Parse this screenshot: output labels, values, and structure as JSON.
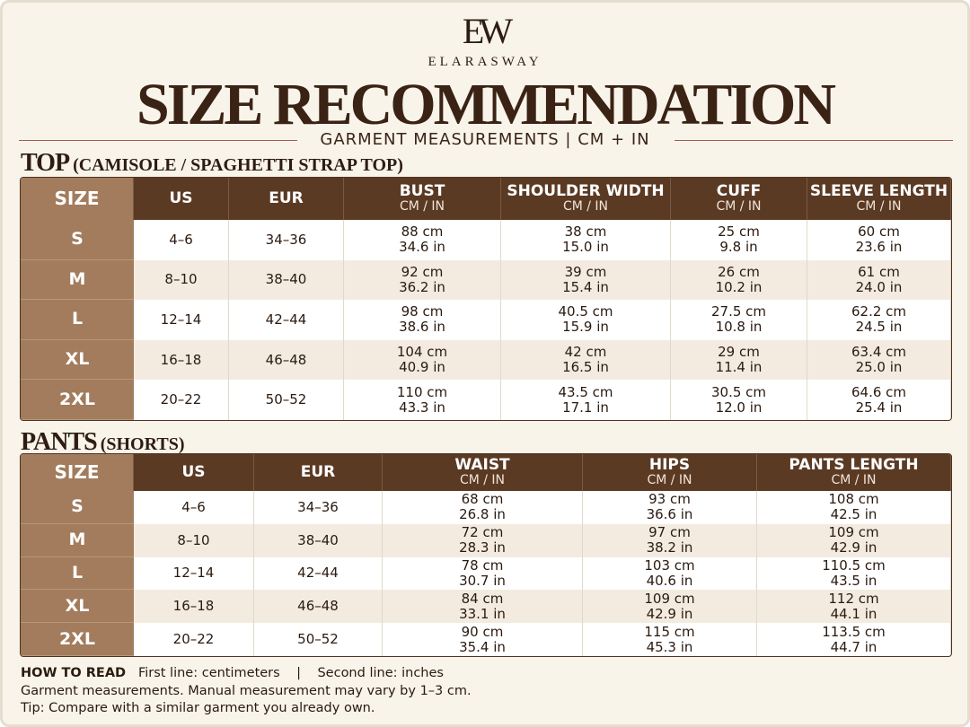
{
  "brand": {
    "logo": "EW",
    "name": "ELARASWAY"
  },
  "title": "SIZE RECOMMENDATION",
  "subtitle": "GARMENT MEASUREMENTS | CM + IN",
  "sections": [
    {
      "heading": "TOP",
      "subheading": "(CAMISOLE / SPAGHETTI STRAP TOP)",
      "columns": [
        {
          "name": "SIZE"
        },
        {
          "name": "US"
        },
        {
          "name": "EUR"
        },
        {
          "name": "BUST",
          "unit": "CM / IN"
        },
        {
          "name": "SHOULDER WIDTH",
          "unit": "CM / IN"
        },
        {
          "name": "CUFF",
          "unit": "CM / IN"
        },
        {
          "name": "SLEEVE LENGTH",
          "unit": "CM / IN"
        }
      ],
      "rows": [
        [
          "S",
          "4–6",
          "34–36",
          [
            "88 cm",
            "34.6 in"
          ],
          [
            "38 cm",
            "15.0 in"
          ],
          [
            "25 cm",
            "9.8 in"
          ],
          [
            "60 cm",
            "23.6 in"
          ]
        ],
        [
          "M",
          "8–10",
          "38–40",
          [
            "92 cm",
            "36.2 in"
          ],
          [
            "39 cm",
            "15.4 in"
          ],
          [
            "26 cm",
            "10.2 in"
          ],
          [
            "61 cm",
            "24.0 in"
          ]
        ],
        [
          "L",
          "12–14",
          "42–44",
          [
            "98 cm",
            "38.6 in"
          ],
          [
            "40.5 cm",
            "15.9 in"
          ],
          [
            "27.5 cm",
            "10.8 in"
          ],
          [
            "62.2 cm",
            "24.5 in"
          ]
        ],
        [
          "XL",
          "16–18",
          "46–48",
          [
            "104 cm",
            "40.9 in"
          ],
          [
            "42 cm",
            "16.5 in"
          ],
          [
            "29 cm",
            "11.4 in"
          ],
          [
            "63.4 cm",
            "25.0 in"
          ]
        ],
        [
          "2XL",
          "20–22",
          "50–52",
          [
            "110 cm",
            "43.3 in"
          ],
          [
            "43.5 cm",
            "17.1 in"
          ],
          [
            "30.5 cm",
            "12.0 in"
          ],
          [
            "64.6 cm",
            "25.4 in"
          ]
        ]
      ]
    },
    {
      "heading": "PANTS",
      "subheading": "(SHORTS)",
      "columns": [
        {
          "name": "SIZE"
        },
        {
          "name": "US"
        },
        {
          "name": "EUR"
        },
        {
          "name": "WAIST",
          "unit": "CM / IN"
        },
        {
          "name": "HIPS",
          "unit": "CM / IN"
        },
        {
          "name": "PANTS LENGTH",
          "unit": "CM / IN"
        }
      ],
      "rows": [
        [
          "S",
          "4–6",
          "34–36",
          [
            "68 cm",
            "26.8 in"
          ],
          [
            "93 cm",
            "36.6 in"
          ],
          [
            "108 cm",
            "42.5 in"
          ]
        ],
        [
          "M",
          "8–10",
          "38–40",
          [
            "72 cm",
            "28.3 in"
          ],
          [
            "97 cm",
            "38.2 in"
          ],
          [
            "109 cm",
            "42.9 in"
          ]
        ],
        [
          "L",
          "12–14",
          "42–44",
          [
            "78 cm",
            "30.7 in"
          ],
          [
            "103 cm",
            "40.6 in"
          ],
          [
            "110.5 cm",
            "43.5 in"
          ]
        ],
        [
          "XL",
          "16–18",
          "46–48",
          [
            "84 cm",
            "33.1 in"
          ],
          [
            "109 cm",
            "42.9 in"
          ],
          [
            "112 cm",
            "44.1 in"
          ]
        ],
        [
          "2XL",
          "20–22",
          "50–52",
          [
            "90 cm",
            "35.4 in"
          ],
          [
            "115 cm",
            "45.3 in"
          ],
          [
            "113.5 cm",
            "44.7 in"
          ]
        ]
      ]
    }
  ],
  "notes": {
    "label": "HOW TO READ",
    "first": "First line: centimeters",
    "separator": "|",
    "second": "Second line: inches",
    "line2": "Garment measurements. Manual measurement may vary by 1–3 cm.",
    "line3": "Tip: Compare with a similar garment you already own."
  }
}
